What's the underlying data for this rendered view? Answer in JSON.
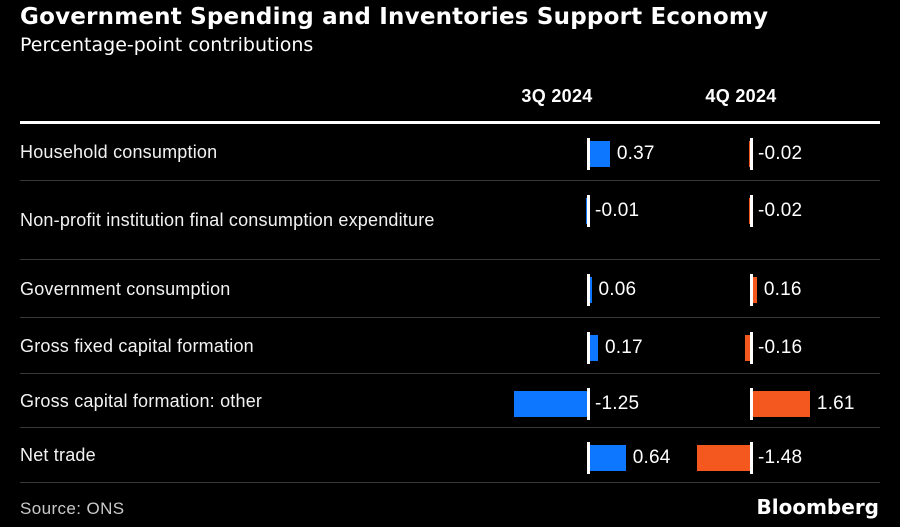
{
  "header": {
    "title": "Government Spending and Inventories Support Economy",
    "subtitle": "Percentage-point contributions"
  },
  "footer": {
    "source": "Source: ONS",
    "brand": "Bloomberg"
  },
  "colors": {
    "background": "#000000",
    "q3_blue": "#0d78ff",
    "q4_orange": "#f5581f",
    "baseline_tick": "#ffffff",
    "row_separator": "#383838",
    "header_rule": "#ffffff"
  },
  "chart_data": {
    "type": "bar",
    "orientation": "horizontal",
    "title": "Government Spending and Inventories Support Economy",
    "subtitle": "Percentage-point contributions",
    "unit": "percentage points",
    "grid": false,
    "legend_position": "column-headers",
    "categories": [
      "Household consumption",
      "Non-profit institution final consumption expenditure",
      "Government consumption",
      "Gross fixed capital formation",
      "Gross capital formation: other",
      "Net trade"
    ],
    "series": [
      {
        "name": "3Q 2024",
        "color": "#0d78ff",
        "values": [
          0.37,
          -0.01,
          0.06,
          0.17,
          -1.25,
          0.64
        ]
      },
      {
        "name": "4Q 2024",
        "color": "#f5581f",
        "values": [
          -0.02,
          -0.02,
          0.16,
          -0.16,
          1.61,
          -1.48
        ]
      }
    ]
  }
}
